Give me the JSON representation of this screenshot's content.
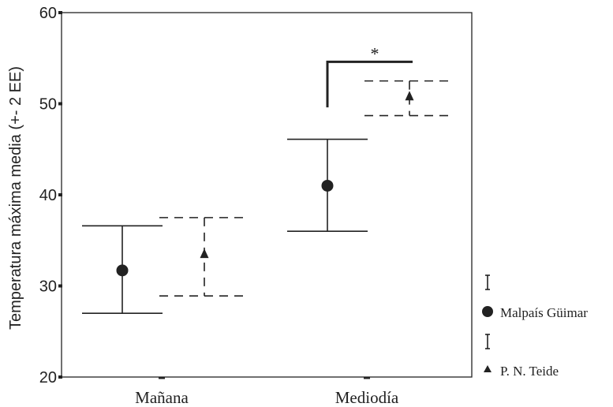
{
  "chart_data": {
    "type": "scatter",
    "title": "",
    "xlabel": "",
    "ylabel": "Temperatura máxima media (+- 2 EE)",
    "ylim": [
      20,
      60
    ],
    "yticks": [
      20,
      30,
      40,
      50,
      60
    ],
    "categories": [
      "Mañana",
      "Mediodía"
    ],
    "grid": false,
    "legend_placement": "right",
    "series": [
      {
        "name": "Malpaís Güimar",
        "marker": "circle",
        "line_style": "solid",
        "means": [
          31.7,
          41.0
        ],
        "lower": [
          27.0,
          36.0
        ],
        "upper": [
          36.6,
          46.1
        ]
      },
      {
        "name": "P. N. Teide",
        "marker": "triangle",
        "line_style": "dashed",
        "means": [
          33.5,
          50.8
        ],
        "lower": [
          28.9,
          48.7
        ],
        "upper": [
          37.5,
          52.5
        ]
      }
    ],
    "annotations": [
      {
        "text": "*",
        "category": "Mediodía"
      }
    ]
  },
  "colors": {
    "ink": "#222222",
    "background": "#ffffff"
  }
}
